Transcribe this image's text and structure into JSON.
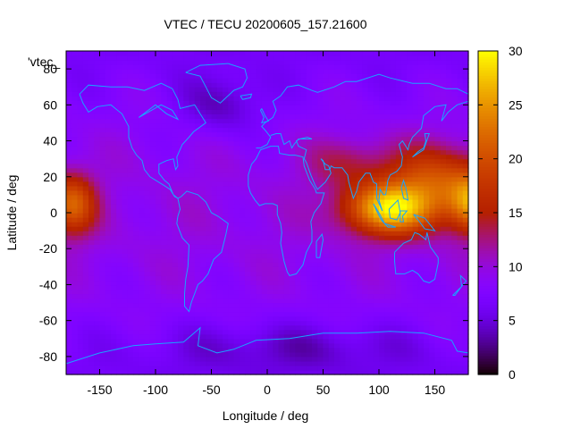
{
  "chart_data": {
    "type": "heatmap",
    "title": "VTEC / TECU 20200605_157.21600",
    "xlabel": "Longitude / deg",
    "ylabel": "Latitude / deg",
    "xlim": [
      -180,
      180
    ],
    "ylim": [
      -90,
      90
    ],
    "xticks": [
      -150,
      -100,
      -50,
      0,
      50,
      100,
      150
    ],
    "yticks": [
      -80,
      -60,
      -40,
      -20,
      0,
      20,
      40,
      60,
      80
    ],
    "key_label": "'vtec_",
    "colorbar": {
      "min": 0,
      "max": 30,
      "ticks": [
        0,
        5,
        10,
        15,
        20,
        25,
        30
      ],
      "palette": "black-blue-purple-red-orange-yellow"
    },
    "coastline_color": "#1aa3ff",
    "grid": false,
    "features": [
      {
        "region": "equatorial anomaly over Pacific (lon -180 to -130, lat -10 to 20)",
        "peak_tecu": 20
      },
      {
        "region": "equatorial anomaly over Southeast Asia (lon 60 to 180, lat -10 to 30)",
        "peak_tecu": 28
      },
      {
        "region": "background mid latitudes",
        "typical_tecu": 8
      },
      {
        "region": "high latitudes / polar",
        "typical_tecu": 5
      }
    ]
  }
}
